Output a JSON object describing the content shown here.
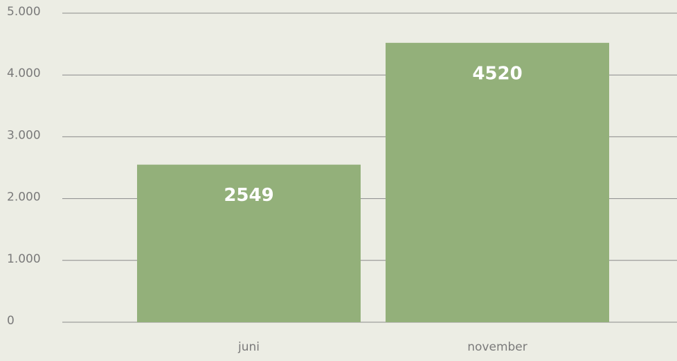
{
  "chart_data": {
    "type": "bar",
    "categories": [
      "juni",
      "november"
    ],
    "values": [
      2549,
      4520
    ],
    "color": "#93b07a",
    "ylim": [
      0,
      5000
    ],
    "yticks": [
      0,
      {
        "value": 1000,
        "label": "1.000"
      },
      {
        "value": 2000,
        "label": "2.000"
      },
      {
        "value": 3000,
        "label": "3.000"
      },
      {
        "value": 4000,
        "label": "4.000"
      },
      {
        "value": 5000,
        "label": "5.000"
      }
    ],
    "grid": true
  }
}
